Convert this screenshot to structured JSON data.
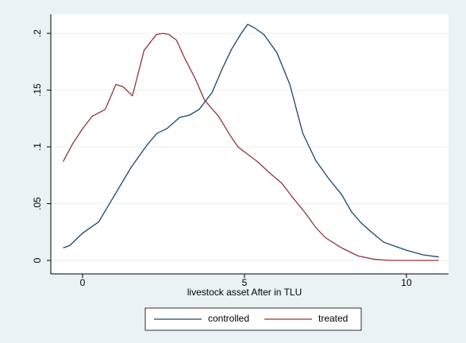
{
  "chart_data": {
    "type": "line",
    "xlabel": "livestock asset After in TLU",
    "xlim": [
      -0.98,
      11.3
    ],
    "ylim": [
      -0.0119,
      0.2168
    ],
    "xticks": [
      0,
      5,
      10
    ],
    "yticks": [
      0,
      {
        "value": 0.05,
        "label": ".05"
      },
      {
        "value": 0.1,
        "label": ".1"
      },
      {
        "value": 0.15,
        "label": ".15"
      },
      {
        "value": 0.2,
        "label": ".2"
      }
    ],
    "grid": true,
    "legend_position": "bottom",
    "series": [
      {
        "name": "controlled",
        "color": "#1a476f",
        "x": [
          -0.6,
          -0.4,
          0,
          0.5,
          1,
          1.5,
          2,
          2.3,
          2.6,
          3,
          3.3,
          3.6,
          4,
          4.3,
          4.6,
          4.9,
          5.1,
          5.3,
          5.6,
          6,
          6.4,
          6.8,
          7.2,
          7.6,
          8,
          8.3,
          8.6,
          9,
          9.3,
          9.7,
          10,
          10.5,
          11
        ],
        "values": [
          0.011,
          0.013,
          0.024,
          0.034,
          0.058,
          0.082,
          0.102,
          0.112,
          0.116,
          0.126,
          0.128,
          0.133,
          0.148,
          0.168,
          0.186,
          0.2,
          0.208,
          0.205,
          0.199,
          0.183,
          0.155,
          0.112,
          0.088,
          0.072,
          0.058,
          0.043,
          0.033,
          0.023,
          0.016,
          0.012,
          0.009,
          0.005,
          0.003
        ]
      },
      {
        "name": "treated",
        "color": "#90353b",
        "x": [
          -0.6,
          -0.3,
          0,
          0.3,
          0.7,
          1.03,
          1.25,
          1.54,
          1.9,
          2.28,
          2.48,
          2.67,
          2.9,
          3.14,
          3.48,
          3.77,
          4.2,
          4.56,
          4.8,
          5.12,
          5.4,
          5.78,
          6.15,
          6.5,
          6.9,
          7.2,
          7.5,
          8,
          8.5,
          9,
          9.5,
          11
        ],
        "values": [
          0.087,
          0.103,
          0.116,
          0.127,
          0.133,
          0.155,
          0.153,
          0.145,
          0.185,
          0.199,
          0.2,
          0.199,
          0.194,
          0.179,
          0.16,
          0.141,
          0.127,
          0.11,
          0.1,
          0.093,
          0.087,
          0.077,
          0.068,
          0.055,
          0.041,
          0.029,
          0.02,
          0.011,
          0.004,
          0.001,
          0,
          0
        ]
      }
    ]
  }
}
